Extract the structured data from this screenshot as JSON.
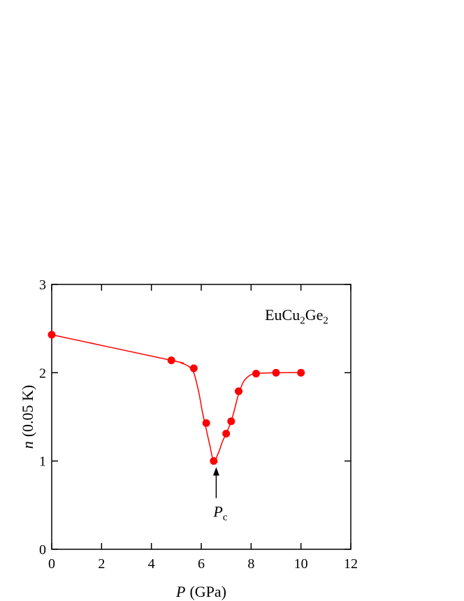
{
  "chart_data": {
    "type": "scatter",
    "title": "",
    "xlabel": {
      "symbol": "P",
      "unit": "(GPa)"
    },
    "ylabel": {
      "symbol": "n",
      "unit": "(0.05 K)"
    },
    "xlim": [
      0,
      12
    ],
    "ylim": [
      0,
      3
    ],
    "xticks": [
      0,
      2,
      4,
      6,
      8,
      10,
      12
    ],
    "yticks": [
      0,
      1,
      2,
      3
    ],
    "grid": false,
    "marker_color": "#ff0000",
    "line_color": "#ff0000",
    "series": [
      {
        "points": [
          {
            "x": 0.0,
            "y": 2.43
          },
          {
            "x": 4.8,
            "y": 2.14
          },
          {
            "x": 5.7,
            "y": 2.05
          },
          {
            "x": 6.2,
            "y": 1.43
          },
          {
            "x": 6.5,
            "y": 1.0
          },
          {
            "x": 7.0,
            "y": 1.31
          },
          {
            "x": 7.2,
            "y": 1.45
          },
          {
            "x": 7.5,
            "y": 1.79
          },
          {
            "x": 8.2,
            "y": 1.99
          },
          {
            "x": 9.0,
            "y": 2.0
          },
          {
            "x": 10.0,
            "y": 2.0
          }
        ],
        "fit_curve": [
          [
            0.0,
            2.43
          ],
          [
            4.8,
            2.14
          ],
          [
            5.2,
            2.11
          ],
          [
            5.5,
            2.07
          ],
          [
            5.7,
            2.0
          ],
          [
            5.9,
            1.78
          ],
          [
            6.05,
            1.55
          ],
          [
            6.2,
            1.36
          ],
          [
            6.35,
            1.17
          ],
          [
            6.5,
            1.0
          ],
          [
            6.7,
            1.1
          ],
          [
            6.85,
            1.22
          ],
          [
            7.0,
            1.31
          ],
          [
            7.2,
            1.45
          ],
          [
            7.35,
            1.6
          ],
          [
            7.5,
            1.76
          ],
          [
            7.7,
            1.9
          ],
          [
            7.95,
            1.97
          ],
          [
            8.2,
            1.99
          ],
          [
            9.0,
            2.0
          ],
          [
            10.0,
            2.0
          ]
        ]
      }
    ],
    "annotations": {
      "compound": {
        "base1": "EuCu",
        "sub1": "2",
        "base2": "Ge",
        "sub2": "2",
        "x": 11.1,
        "y": 2.65
      },
      "marker_label": {
        "symbol": "P",
        "subscript": "c",
        "x": 6.6,
        "y": 0.37
      },
      "arrow": {
        "x": 6.6,
        "y_tail": 0.58,
        "y_head": 0.93
      }
    }
  }
}
